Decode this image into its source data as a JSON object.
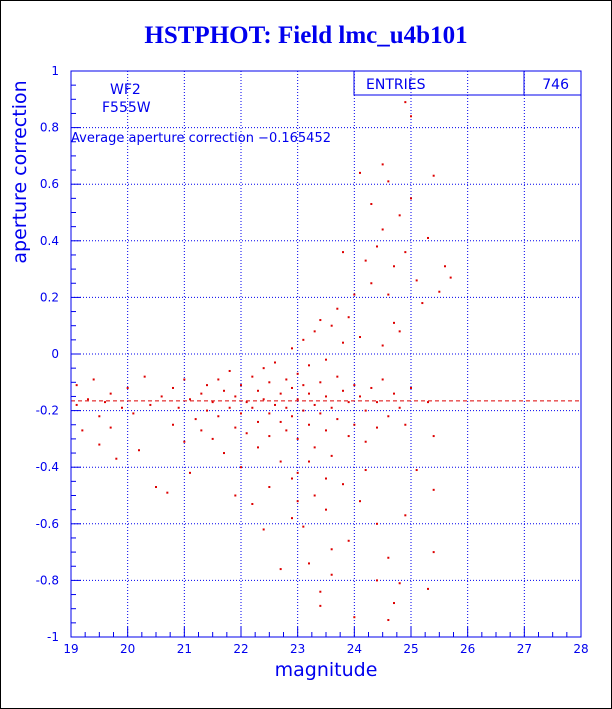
{
  "colors": {
    "axis": "#0000ee",
    "data": "#dd0000",
    "frame": "#000000"
  },
  "chart_data": {
    "type": "scatter",
    "title": "HSTPHOT: Field lmc_u4b101",
    "xlabel": "magnitude",
    "ylabel": "aperture correction",
    "xlim": [
      19,
      28
    ],
    "ylim": [
      -1,
      1
    ],
    "xticks": [
      "19",
      "20",
      "21",
      "22",
      "23",
      "24",
      "25",
      "26",
      "27",
      "28"
    ],
    "yticks": [
      "-1",
      "-0.8",
      "-0.6",
      "-0.4",
      "-0.2",
      "0",
      "0.2",
      "0.4",
      "0.6",
      "0.8",
      "1"
    ],
    "grid": true,
    "annotations": {
      "chip": "WF2",
      "filter": "F555W",
      "average": "Average aperture correction −0.165452"
    },
    "stats_box": {
      "label": "ENTRIES",
      "value": "746"
    },
    "reference_line": {
      "y": -0.165452,
      "style": "dashed"
    },
    "points_note": "746 points; listed below is a representative sample read from the plot",
    "points": [
      [
        19.1,
        -0.11
      ],
      [
        19.1,
        -0.18
      ],
      [
        19.2,
        -0.27
      ],
      [
        19.3,
        -0.16
      ],
      [
        19.4,
        -0.09
      ],
      [
        19.5,
        -0.22
      ],
      [
        19.5,
        -0.32
      ],
      [
        19.6,
        -0.17
      ],
      [
        19.7,
        -0.14
      ],
      [
        19.7,
        -0.26
      ],
      [
        19.8,
        -0.37
      ],
      [
        19.9,
        -0.19
      ],
      [
        20.0,
        -0.12
      ],
      [
        20.1,
        -0.21
      ],
      [
        20.2,
        -0.34
      ],
      [
        20.3,
        -0.08
      ],
      [
        20.4,
        -0.18
      ],
      [
        20.5,
        -0.47
      ],
      [
        20.6,
        -0.15
      ],
      [
        20.7,
        -0.49
      ],
      [
        20.8,
        -0.25
      ],
      [
        20.8,
        -0.12
      ],
      [
        20.9,
        -0.19
      ],
      [
        21.0,
        -0.31
      ],
      [
        21.0,
        -0.09
      ],
      [
        21.1,
        -0.16
      ],
      [
        21.2,
        -0.23
      ],
      [
        21.3,
        -0.14
      ],
      [
        21.3,
        -0.27
      ],
      [
        21.4,
        -0.11
      ],
      [
        21.4,
        -0.2
      ],
      [
        21.5,
        -0.17
      ],
      [
        21.5,
        -0.3
      ],
      [
        21.6,
        -0.09
      ],
      [
        21.6,
        -0.22
      ],
      [
        21.7,
        -0.13
      ],
      [
        21.7,
        -0.35
      ],
      [
        21.8,
        -0.19
      ],
      [
        21.8,
        -0.06
      ],
      [
        21.9,
        -0.26
      ],
      [
        21.9,
        -0.15
      ],
      [
        22.0,
        -0.11
      ],
      [
        22.0,
        -0.21
      ],
      [
        22.0,
        -0.4
      ],
      [
        22.1,
        -0.17
      ],
      [
        22.1,
        -0.28
      ],
      [
        22.2,
        -0.08
      ],
      [
        22.2,
        -0.19
      ],
      [
        22.3,
        -0.13
      ],
      [
        22.3,
        -0.24
      ],
      [
        22.3,
        -0.33
      ],
      [
        22.4,
        -0.05
      ],
      [
        22.4,
        -0.16
      ],
      [
        22.5,
        -0.21
      ],
      [
        22.5,
        -0.1
      ],
      [
        22.5,
        -0.29
      ],
      [
        22.6,
        -0.18
      ],
      [
        22.6,
        -0.03
      ],
      [
        22.7,
        -0.14
      ],
      [
        22.7,
        -0.24
      ],
      [
        22.7,
        -0.38
      ],
      [
        22.8,
        -0.09
      ],
      [
        22.8,
        -0.19
      ],
      [
        22.8,
        -0.27
      ],
      [
        22.9,
        -0.12
      ],
      [
        22.9,
        -0.22
      ],
      [
        22.9,
        0.02
      ],
      [
        23.0,
        -0.16
      ],
      [
        23.0,
        -0.07
      ],
      [
        23.0,
        -0.3
      ],
      [
        23.0,
        -0.42
      ],
      [
        23.1,
        -0.11
      ],
      [
        23.1,
        -0.2
      ],
      [
        23.1,
        0.05
      ],
      [
        23.2,
        -0.14
      ],
      [
        23.2,
        -0.25
      ],
      [
        23.2,
        -0.04
      ],
      [
        23.3,
        -0.18
      ],
      [
        23.3,
        0.08
      ],
      [
        23.3,
        -0.33
      ],
      [
        23.4,
        -0.1
      ],
      [
        23.4,
        -0.21
      ],
      [
        23.4,
        0.12
      ],
      [
        23.5,
        -0.15
      ],
      [
        23.5,
        -0.27
      ],
      [
        23.5,
        -0.02
      ],
      [
        23.6,
        -0.19
      ],
      [
        23.6,
        0.1
      ],
      [
        23.6,
        -0.36
      ],
      [
        23.7,
        -0.08
      ],
      [
        23.7,
        -0.23
      ],
      [
        23.7,
        0.16
      ],
      [
        23.8,
        -0.13
      ],
      [
        23.8,
        0.04
      ],
      [
        23.9,
        -0.17
      ],
      [
        23.9,
        -0.29
      ],
      [
        23.9,
        0.13
      ],
      [
        24.0,
        -0.11
      ],
      [
        24.0,
        0.21
      ],
      [
        24.0,
        -0.25
      ],
      [
        24.1,
        -0.15
      ],
      [
        24.1,
        0.06
      ],
      [
        24.2,
        -0.2
      ],
      [
        24.2,
        0.33
      ],
      [
        24.2,
        -0.31
      ],
      [
        24.3,
        -0.12
      ],
      [
        24.3,
        0.25
      ],
      [
        24.4,
        -0.17
      ],
      [
        24.4,
        -0.26
      ],
      [
        24.4,
        0.38
      ],
      [
        24.5,
        -0.09
      ],
      [
        24.5,
        0.03
      ],
      [
        24.5,
        0.44
      ],
      [
        24.6,
        -0.22
      ],
      [
        24.6,
        0.21
      ],
      [
        24.6,
        0.61
      ],
      [
        24.7,
        -0.14
      ],
      [
        24.7,
        0.11
      ],
      [
        24.7,
        0.31
      ],
      [
        24.8,
        -0.19
      ],
      [
        24.8,
        0.49
      ],
      [
        24.8,
        0.08
      ],
      [
        24.9,
        -0.25
      ],
      [
        24.9,
        0.36
      ],
      [
        25.0,
        0.84
      ],
      [
        25.0,
        0.55
      ],
      [
        25.0,
        -0.12
      ],
      [
        25.1,
        0.26
      ],
      [
        25.2,
        0.18
      ],
      [
        25.3,
        -0.17
      ],
      [
        25.3,
        0.41
      ],
      [
        25.4,
        0.63
      ],
      [
        25.4,
        -0.29
      ],
      [
        25.5,
        0.22
      ],
      [
        25.6,
        0.31
      ],
      [
        25.7,
        0.27
      ],
      [
        24.9,
        0.89
      ],
      [
        24.5,
        0.67
      ],
      [
        24.3,
        0.53
      ],
      [
        24.1,
        0.64
      ],
      [
        23.8,
        0.36
      ],
      [
        24.2,
        -0.41
      ],
      [
        24.4,
        -0.6
      ],
      [
        24.6,
        -0.72
      ],
      [
        24.8,
        -0.81
      ],
      [
        24.9,
        -0.57
      ],
      [
        25.3,
        -0.83
      ],
      [
        25.4,
        -0.7
      ],
      [
        25.4,
        -0.48
      ],
      [
        25.1,
        -0.41
      ],
      [
        24.7,
        -0.88
      ],
      [
        24.4,
        -0.8
      ],
      [
        23.9,
        -0.66
      ],
      [
        23.6,
        -0.69
      ],
      [
        23.5,
        -0.55
      ],
      [
        23.4,
        -0.84
      ],
      [
        23.4,
        -0.89
      ],
      [
        23.2,
        -0.74
      ],
      [
        23.1,
        -0.61
      ],
      [
        23.0,
        -0.52
      ],
      [
        22.9,
        -0.58
      ],
      [
        22.7,
        -0.76
      ],
      [
        22.4,
        -0.62
      ],
      [
        22.2,
        -0.53
      ],
      [
        21.9,
        -0.5
      ],
      [
        21.1,
        -0.42
      ],
      [
        23.3,
        -0.5
      ],
      [
        23.6,
        -0.78
      ],
      [
        24.0,
        -0.93
      ],
      [
        24.6,
        -0.94
      ],
      [
        23.8,
        -0.46
      ],
      [
        22.9,
        -0.44
      ],
      [
        22.5,
        -0.47
      ],
      [
        23.2,
        -0.38
      ],
      [
        23.5,
        -0.44
      ],
      [
        24.1,
        -0.52
      ]
    ]
  }
}
